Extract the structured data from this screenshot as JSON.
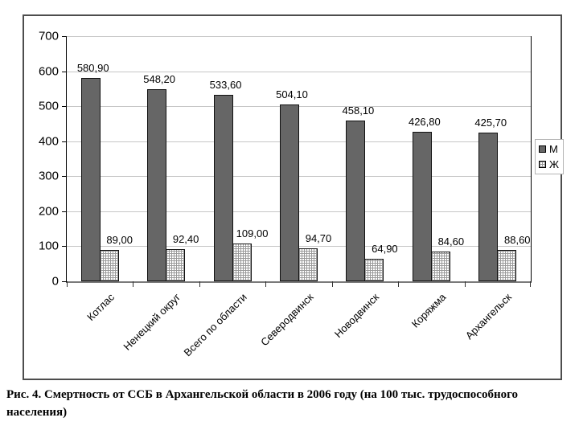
{
  "chart_data": {
    "type": "bar",
    "title": "",
    "categories": [
      "Котлас",
      "Ненецкий округ",
      "Всего по области",
      "Северодвинск",
      "Новодвинск",
      "Коряжма",
      "Архангельск"
    ],
    "series": [
      {
        "name": "М",
        "values": [
          580.9,
          548.2,
          533.6,
          504.1,
          458.1,
          426.8,
          425.7
        ],
        "labels": [
          "580,90",
          "548,20",
          "533,60",
          "504,10",
          "458,10",
          "426,80",
          "425,70"
        ],
        "color": "#666666",
        "pattern": "solid"
      },
      {
        "name": "Ж",
        "values": [
          89.0,
          92.4,
          109.0,
          94.7,
          64.9,
          84.6,
          88.6
        ],
        "labels": [
          "89,00",
          "92,40",
          "109,00",
          "94,70",
          "64,90",
          "84,60",
          "88,60"
        ],
        "color": "#ffffff",
        "pattern": "grid"
      }
    ],
    "xlabel": "",
    "ylabel": "",
    "ylim": [
      0,
      700
    ],
    "yticks": [
      0,
      100,
      200,
      300,
      400,
      500,
      600,
      700
    ],
    "grid": true,
    "legend_position": "right"
  },
  "caption": "Рис. 4. Смертность от ССБ в Архангельской области  в 2006 году (на 100 тыс. трудоспособного населения)",
  "colors": {
    "bar_m": "#666666",
    "bar_f_bg": "#ffffff",
    "bar_border": "#111111",
    "gridline": "#c6c6c6",
    "axis": "#000000",
    "frame_border": "#4d4d4d",
    "legend_border": "#b5b5b5"
  }
}
